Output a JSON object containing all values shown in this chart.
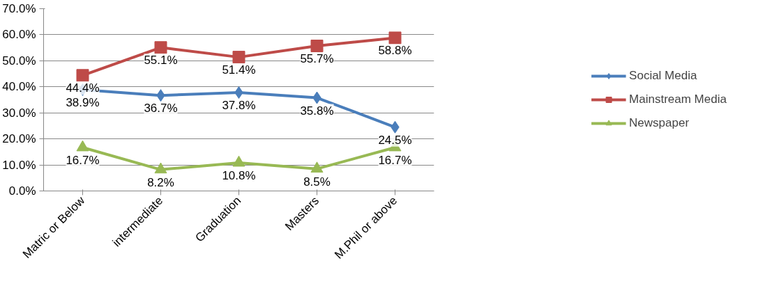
{
  "chart_data": {
    "type": "line",
    "categories": [
      "Matric or Below",
      "intermediate",
      "Graduation",
      "Masters",
      "M.Phil or above"
    ],
    "series": [
      {
        "name": "Social Media",
        "color": "#4a7ebb",
        "marker": "diamond",
        "values": [
          38.9,
          36.7,
          37.8,
          35.8,
          24.5
        ],
        "value_labels": [
          "38.9%",
          "36.7%",
          "37.8%",
          "35.8%",
          "24.5%"
        ]
      },
      {
        "name": "Mainstream Media",
        "color": "#be4b48",
        "marker": "square",
        "values": [
          44.4,
          55.1,
          51.4,
          55.7,
          58.8
        ],
        "value_labels": [
          "44.4%",
          "55.1%",
          "51.4%",
          "55.7%",
          "58.8%"
        ]
      },
      {
        "name": "Newspaper",
        "color": "#98b954",
        "marker": "triangle",
        "values": [
          16.7,
          8.2,
          10.8,
          8.5,
          16.7
        ],
        "value_labels": [
          "16.7%",
          "8.2%",
          "10.8%",
          "8.5%",
          "16.7%"
        ]
      }
    ],
    "ylim": [
      0,
      70
    ],
    "yticks": [
      {
        "value": 0,
        "label": "0.0%"
      },
      {
        "value": 10,
        "label": "10.0%"
      },
      {
        "value": 20,
        "label": "20.0%"
      },
      {
        "value": 30,
        "label": "30.0%"
      },
      {
        "value": 40,
        "label": "40.0%"
      },
      {
        "value": 50,
        "label": "50.0%"
      },
      {
        "value": 60,
        "label": "60.0%"
      },
      {
        "value": 70,
        "label": "70.0%"
      }
    ],
    "grid": "y",
    "legend": "right",
    "line_style": "solid"
  }
}
